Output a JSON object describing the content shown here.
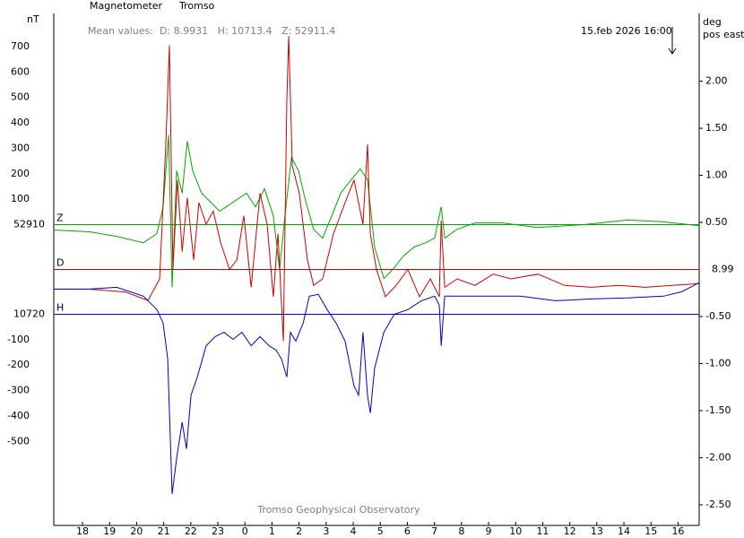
{
  "chart_data": {
    "type": "line",
    "title": "Magnetometer",
    "station": "Tromso",
    "mean_values": "Mean values:  D: 8.9931   H: 10713.4   Z: 52911.4",
    "timestamp": "15.feb 2026 16:00",
    "y_label": "nT",
    "y2_label": "deg",
    "y2_sublabel": "pos east",
    "footer": "Tromso Geophysical Observatory",
    "xlim": [
      -1.06,
      22.78
    ],
    "xticks": [
      {
        "value": 0,
        "label": "18"
      },
      {
        "value": 1,
        "label": "19"
      },
      {
        "value": 2,
        "label": "20"
      },
      {
        "value": 3,
        "label": "21"
      },
      {
        "value": 4,
        "label": "22"
      },
      {
        "value": 5,
        "label": "23"
      },
      {
        "value": 6,
        "label": "0"
      },
      {
        "value": 7,
        "label": "1"
      },
      {
        "value": 8,
        "label": "2"
      },
      {
        "value": 9,
        "label": "3"
      },
      {
        "value": 10,
        "label": "4"
      },
      {
        "value": 11,
        "label": "5"
      },
      {
        "value": 12,
        "label": "6"
      },
      {
        "value": 13,
        "label": "7"
      },
      {
        "value": 14,
        "label": "8"
      },
      {
        "value": 15,
        "label": "9"
      },
      {
        "value": 16,
        "label": "10"
      },
      {
        "value": 17,
        "label": "11"
      },
      {
        "value": 18,
        "label": "12"
      },
      {
        "value": 19,
        "label": "13"
      },
      {
        "value": 20,
        "label": "14"
      },
      {
        "value": 21,
        "label": "15"
      },
      {
        "value": 22,
        "label": "16"
      }
    ],
    "y2lim": [
      -2.72,
      2.72
    ],
    "y2ticks": [
      {
        "value": 2,
        "label": "2.00"
      },
      {
        "value": 1.5,
        "label": "1.50"
      },
      {
        "value": 1,
        "label": "1.00"
      },
      {
        "value": 0.5,
        "label": "0.50"
      },
      {
        "value": -0.5,
        "label": "-0.50"
      },
      {
        "value": -1,
        "label": "-1.00"
      },
      {
        "value": -1.5,
        "label": "-1.50"
      },
      {
        "value": -2,
        "label": "-2.00"
      },
      {
        "value": -2.5,
        "label": "-2.50"
      }
    ],
    "series": [
      {
        "name": "Z",
        "color": "#00a800",
        "baseline": 52910,
        "ylim": [
          -1182,
          830
        ],
        "yticks": [
          100,
          200,
          300,
          400,
          500,
          600,
          700
        ],
        "x": [
          -1.06,
          0.26,
          1.26,
          2.25,
          2.75,
          2.98,
          3.18,
          3.31,
          3.48,
          3.68,
          3.87,
          4.07,
          4.4,
          4.74,
          5.07,
          5.56,
          6.06,
          6.39,
          6.72,
          7.05,
          7.28,
          7.48,
          7.72,
          7.98,
          8.21,
          8.54,
          8.87,
          9.21,
          9.54,
          9.93,
          10.26,
          10.53,
          10.79,
          11.13,
          11.46,
          11.85,
          12.25,
          12.68,
          13.01,
          13.25,
          13.38,
          13.84,
          14.5,
          15.5,
          16.82,
          18.48,
          20.13,
          21.46,
          22.78
        ],
        "values": [
          -21,
          -28,
          -46,
          -71,
          -35,
          70,
          353,
          -247,
          212,
          124,
          328,
          212,
          124,
          88,
          53,
          88,
          124,
          70,
          141,
          35,
          -176,
          35,
          265,
          212,
          106,
          -18,
          -53,
          35,
          124,
          177,
          219,
          177,
          -88,
          -212,
          -176,
          -124,
          -88,
          -71,
          -53,
          70,
          -53,
          -18,
          7,
          7,
          -11,
          0,
          18,
          11,
          -4
        ]
      },
      {
        "name": "D",
        "color": "#d00000",
        "baseline": 8.99,
        "axis": "y2",
        "x": [
          -1.06,
          0.26,
          1.59,
          2.42,
          2.85,
          3.08,
          3.21,
          3.34,
          3.51,
          3.68,
          3.87,
          4.11,
          4.3,
          4.57,
          4.83,
          5.1,
          5.43,
          5.7,
          5.96,
          6.23,
          6.56,
          6.82,
          7.05,
          7.22,
          7.42,
          7.55,
          7.62,
          7.75,
          8.01,
          8.31,
          8.54,
          8.87,
          9.27,
          9.7,
          10.03,
          10.36,
          10.53,
          10.63,
          10.86,
          11.19,
          11.59,
          12.02,
          12.45,
          12.85,
          13.18,
          13.25,
          13.38,
          13.84,
          14.5,
          15.17,
          15.83,
          16.82,
          17.81,
          18.81,
          19.8,
          20.79,
          21.79,
          22.78
        ],
        "values": [
          -0.21,
          -0.21,
          -0.24,
          -0.33,
          -0.1,
          1.33,
          2.38,
          0,
          0.95,
          0.19,
          0.76,
          0.1,
          0.71,
          0.48,
          0.62,
          0.29,
          0,
          0.1,
          0.57,
          -0.19,
          0.81,
          0.48,
          -0.29,
          0.38,
          -0.76,
          1.81,
          2.48,
          1.1,
          0.81,
          0.1,
          -0.17,
          -0.1,
          0.38,
          0.71,
          0.95,
          0.48,
          1.33,
          0.38,
          0,
          -0.29,
          -0.17,
          0,
          -0.29,
          -0.1,
          -0.29,
          0.52,
          -0.19,
          -0.1,
          -0.17,
          -0.05,
          -0.1,
          -0.05,
          -0.17,
          -0.19,
          -0.17,
          -0.19,
          -0.17,
          -0.15
        ]
      },
      {
        "name": "H",
        "color": "#0000c8",
        "baseline": 10720,
        "ylim": [
          -830,
          1182
        ],
        "yticks": [
          -100,
          -200,
          -300,
          -400,
          -500
        ],
        "x": [
          -1.06,
          0.26,
          1.26,
          2.25,
          2.75,
          2.98,
          3.15,
          3.31,
          3.48,
          3.68,
          3.84,
          4.01,
          4.24,
          4.57,
          4.9,
          5.23,
          5.56,
          5.89,
          6.23,
          6.56,
          6.89,
          7.15,
          7.35,
          7.55,
          7.68,
          7.88,
          8.15,
          8.38,
          8.71,
          9.04,
          9.37,
          9.7,
          10.03,
          10.2,
          10.36,
          10.53,
          10.63,
          10.79,
          11.13,
          11.52,
          12.02,
          12.52,
          13.01,
          13.18,
          13.25,
          13.38,
          14.17,
          15.17,
          16.16,
          17.48,
          18.81,
          20.13,
          21.46,
          22.12,
          22.78
        ],
        "values": [
          99,
          99,
          106,
          71,
          18,
          -35,
          -176,
          -706,
          -565,
          -424,
          -529,
          -318,
          -247,
          -124,
          -88,
          -71,
          -99,
          -71,
          -124,
          -88,
          -124,
          -141,
          -176,
          -247,
          -71,
          -106,
          -35,
          71,
          78,
          18,
          -35,
          -106,
          -282,
          -318,
          -71,
          -318,
          -388,
          -212,
          -71,
          0,
          18,
          53,
          71,
          35,
          -124,
          71,
          71,
          71,
          71,
          53,
          60,
          64,
          71,
          88,
          124
        ]
      }
    ]
  }
}
